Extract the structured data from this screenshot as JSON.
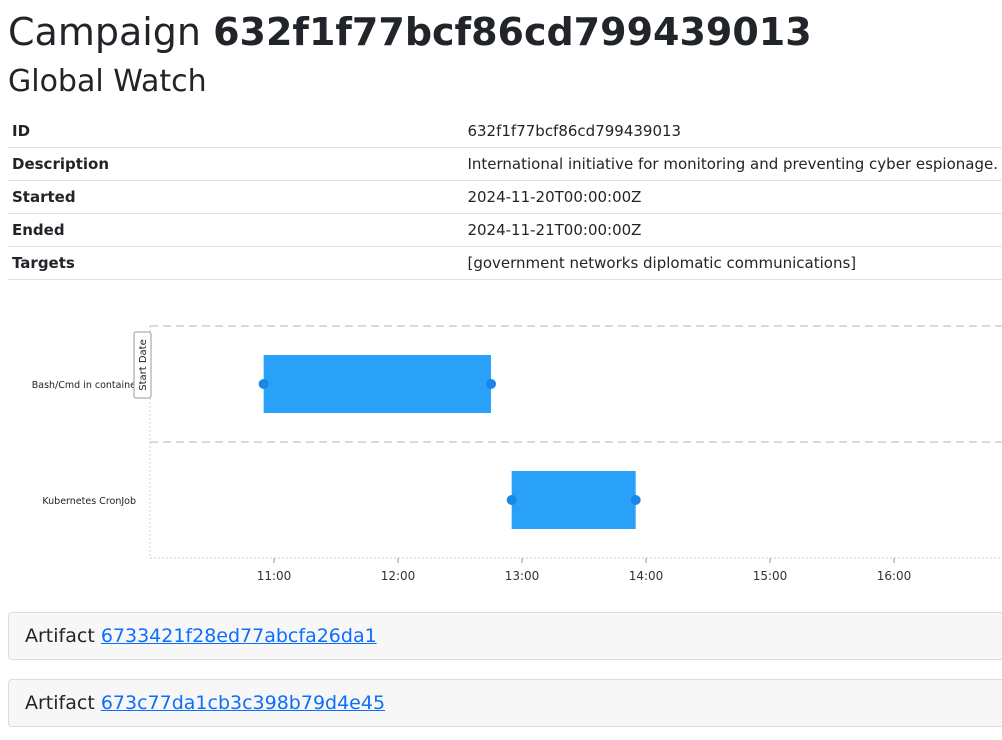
{
  "header": {
    "prefix": "Campaign",
    "campaign_id": "632f1f77bcf86cd799439013",
    "subtitle": "Global Watch"
  },
  "info": {
    "rows": [
      {
        "key": "ID",
        "value": "632f1f77bcf86cd799439013"
      },
      {
        "key": "Description",
        "value": "International initiative for monitoring and preventing cyber espionage."
      },
      {
        "key": "Started",
        "value": "2024-11-20T00:00:00Z"
      },
      {
        "key": "Ended",
        "value": "2024-11-21T00:00:00Z"
      },
      {
        "key": "Targets",
        "value": "[government networks diplomatic communications]"
      }
    ]
  },
  "chart_data": {
    "type": "bar",
    "orientation": "horizontal-timeline",
    "categories": [
      "Bash/Cmd in containe",
      "Kubernetes CronJob"
    ],
    "series": [
      {
        "start": [
          "10:55",
          "12:55"
        ],
        "end": [
          "12:45",
          "13:55"
        ]
      }
    ],
    "x_ticks": [
      "11:00",
      "12:00",
      "13:00",
      "14:00",
      "15:00",
      "16:00"
    ],
    "axis_label_vertical": "Start Date",
    "bar_color": "#2aa1f8",
    "point_color": "#1a86e8"
  },
  "artifacts": [
    {
      "label": "Artifact",
      "id": "6733421f28ed77abcfa26da1"
    },
    {
      "label": "Artifact",
      "id": "673c77da1cb3c398b79d4e45"
    }
  ]
}
